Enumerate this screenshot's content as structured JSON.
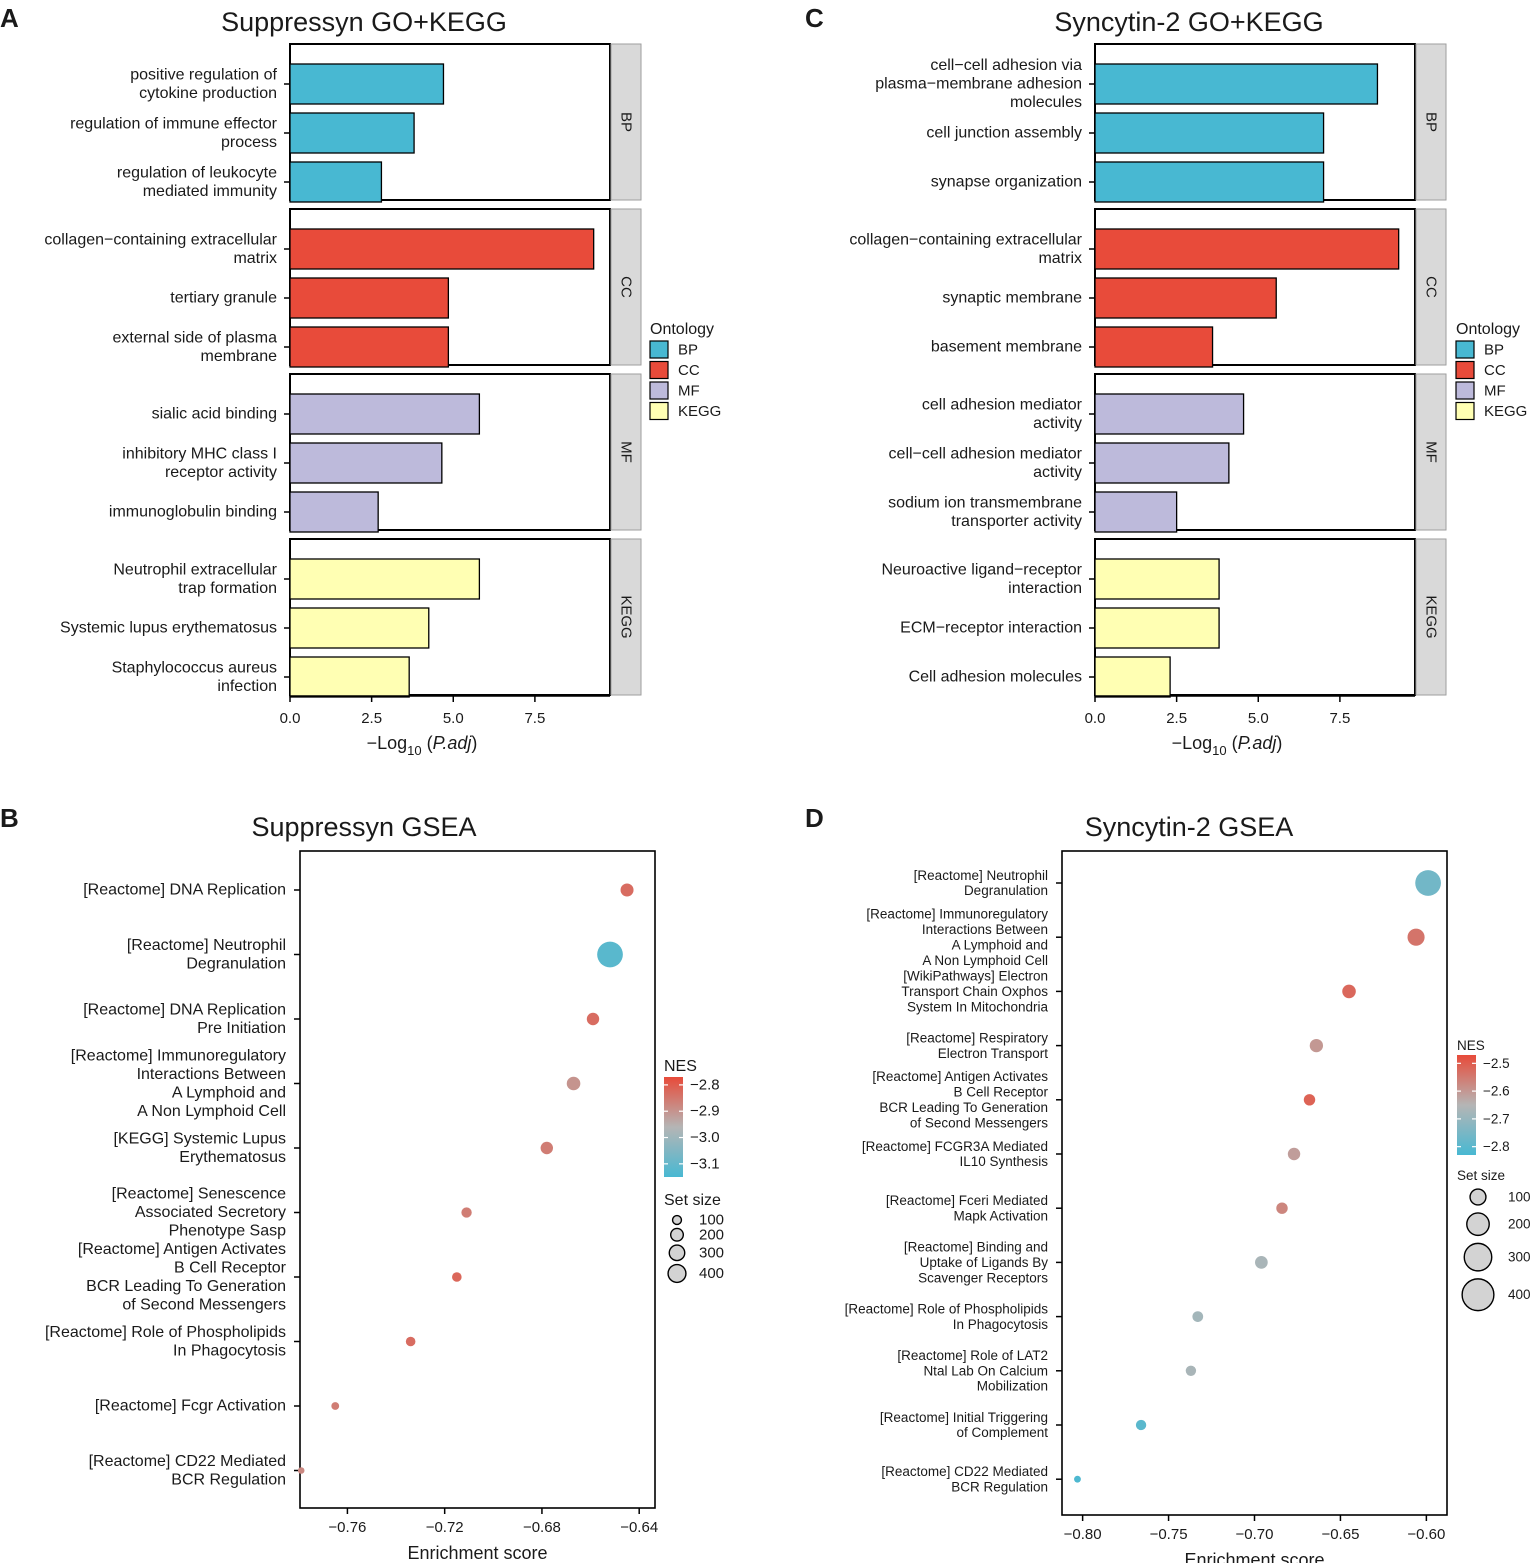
{
  "palette": {
    "BP": "#48b8d2",
    "CC": "#e84b3a",
    "MF": "#bdbadb",
    "KEGG": "#ffffb3",
    "strip": "#d9d9d9",
    "nes_high": "#e84b3a",
    "nes_low": "#48b8d2",
    "nes_mid": "#b5b5b5",
    "size_fill": "#d3d3d3"
  },
  "chart_data": [
    {
      "panel": "A",
      "type": "bar",
      "title": "Suppressyn GO+KEGG",
      "xlabel_main": "−Log",
      "xlabel_sub": "10",
      "xlabel_italic": "P.adj",
      "xlim": [
        0,
        9.8
      ],
      "xticks": [
        "0.0",
        "2.5",
        "5.0",
        "7.5"
      ],
      "legend_title": "Ontology",
      "legend_items": [
        "BP",
        "CC",
        "MF",
        "KEGG"
      ],
      "facets": [
        {
          "name": "BP",
          "terms": [
            {
              "label": [
                "positive regulation of",
                "cytokine production"
              ],
              "value": 4.7
            },
            {
              "label": [
                "regulation of immune effector",
                "process"
              ],
              "value": 3.8
            },
            {
              "label": [
                "regulation of leukocyte",
                "mediated immunity"
              ],
              "value": 2.8
            }
          ]
        },
        {
          "name": "CC",
          "terms": [
            {
              "label": [
                "collagen−containing extracellular",
                "matrix"
              ],
              "value": 9.3
            },
            {
              "label": [
                "tertiary granule"
              ],
              "value": 4.85
            },
            {
              "label": [
                "external side of plasma",
                "membrane"
              ],
              "value": 4.85
            }
          ]
        },
        {
          "name": "MF",
          "terms": [
            {
              "label": [
                "sialic acid binding"
              ],
              "value": 5.8
            },
            {
              "label": [
                "inhibitory MHC class I",
                "receptor activity"
              ],
              "value": 4.65
            },
            {
              "label": [
                "immunoglobulin binding"
              ],
              "value": 2.7
            }
          ]
        },
        {
          "name": "KEGG",
          "terms": [
            {
              "label": [
                "Neutrophil extracellular",
                "trap formation"
              ],
              "value": 5.8
            },
            {
              "label": [
                "Systemic lupus erythematosus"
              ],
              "value": 4.25
            },
            {
              "label": [
                "Staphylococcus aureus",
                "infection"
              ],
              "value": 3.65
            }
          ]
        }
      ]
    },
    {
      "panel": "C",
      "type": "bar",
      "title": "Syncytin-2 GO+KEGG",
      "xlabel_main": "−Log",
      "xlabel_sub": "10",
      "xlabel_italic": "P.adj",
      "xlim": [
        0,
        9.8
      ],
      "xticks": [
        "0.0",
        "2.5",
        "5.0",
        "7.5"
      ],
      "legend_title": "Ontology",
      "legend_items": [
        "BP",
        "CC",
        "MF",
        "KEGG"
      ],
      "facets": [
        {
          "name": "BP",
          "terms": [
            {
              "label": [
                "cell−cell adhesion via",
                "plasma−membrane adhesion",
                "molecules"
              ],
              "value": 8.65
            },
            {
              "label": [
                "cell junction assembly"
              ],
              "value": 7.0
            },
            {
              "label": [
                "synapse organization"
              ],
              "value": 7.0
            }
          ]
        },
        {
          "name": "CC",
          "terms": [
            {
              "label": [
                "collagen−containing extracellular",
                "matrix"
              ],
              "value": 9.3
            },
            {
              "label": [
                "synaptic membrane"
              ],
              "value": 5.55
            },
            {
              "label": [
                "basement membrane"
              ],
              "value": 3.6
            }
          ]
        },
        {
          "name": "MF",
          "terms": [
            {
              "label": [
                "cell adhesion mediator",
                "activity"
              ],
              "value": 4.55
            },
            {
              "label": [
                "cell−cell adhesion mediator",
                "activity"
              ],
              "value": 4.1
            },
            {
              "label": [
                "sodium ion transmembrane",
                "transporter activity"
              ],
              "value": 2.5
            }
          ]
        },
        {
          "name": "KEGG",
          "terms": [
            {
              "label": [
                "Neuroactive ligand−receptor",
                "interaction"
              ],
              "value": 3.8
            },
            {
              "label": [
                "ECM−receptor interaction"
              ],
              "value": 3.8
            },
            {
              "label": [
                "Cell adhesion molecules"
              ],
              "value": 2.3
            }
          ]
        }
      ]
    },
    {
      "panel": "B",
      "type": "scatter",
      "title": "Suppressyn GSEA",
      "xlabel": "Enrichment score",
      "xlim": [
        -0.7795,
        -0.6335
      ],
      "xticks": [
        -0.76,
        -0.72,
        -0.68,
        -0.64
      ],
      "xtick_labels": [
        "−0.76",
        "−0.72",
        "−0.68",
        "−0.64"
      ],
      "nes_legend_title": "NES",
      "nes_range": [
        -3.15,
        -2.77
      ],
      "nes_ticks": [
        "−2.8",
        "−2.9",
        "−3.0",
        "−3.1"
      ],
      "nes_tick_values": [
        -2.8,
        -2.9,
        -3.0,
        -3.1
      ],
      "size_legend_title": "Set size",
      "size_ticks": [
        100,
        200,
        300,
        400
      ],
      "points": [
        {
          "label": [
            "[Reactome] DNA Replication"
          ],
          "es": -0.645,
          "nes": -2.83,
          "size": 110
        },
        {
          "label": [
            "[Reactome] Neutrophil",
            "Degranulation"
          ],
          "es": -0.652,
          "nes": -3.12,
          "size": 430
        },
        {
          "label": [
            "[Reactome] DNA Replication",
            "Pre Initiation"
          ],
          "es": -0.659,
          "nes": -2.83,
          "size": 100
        },
        {
          "label": [
            "[Reactome] Immunoregulatory",
            "Interactions Between",
            "A Lymphoid and",
            "A Non Lymphoid Cell"
          ],
          "es": -0.667,
          "nes": -2.9,
          "size": 120
        },
        {
          "label": [
            "[KEGG] Systemic Lupus",
            "Erythematosus"
          ],
          "es": -0.678,
          "nes": -2.86,
          "size": 100
        },
        {
          "label": [
            "[Reactome] Senescence",
            "Associated Secretory",
            "Phenotype Sasp"
          ],
          "es": -0.711,
          "nes": -2.86,
          "size": 70
        },
        {
          "label": [
            "[Reactome] Antigen Activates",
            "B Cell Receptor",
            "BCR Leading To Generation",
            "of Second Messengers"
          ],
          "es": -0.715,
          "nes": -2.82,
          "size": 60
        },
        {
          "label": [
            "[Reactome] Role of Phospholipids",
            "In Phagocytosis"
          ],
          "es": -0.734,
          "nes": -2.83,
          "size": 60
        },
        {
          "label": [
            "[Reactome] Fcgr Activation"
          ],
          "es": -0.765,
          "nes": -2.86,
          "size": 40
        },
        {
          "label": [
            "[Reactome] CD22 Mediated",
            "BCR Regulation"
          ],
          "es": -0.779,
          "nes": -2.88,
          "size": 28
        }
      ]
    },
    {
      "panel": "D",
      "type": "scatter",
      "title": "Syncytin-2 GSEA",
      "xlabel": "Enrichment score",
      "xlim": [
        -0.812,
        -0.588
      ],
      "xticks": [
        -0.8,
        -0.75,
        -0.7,
        -0.65,
        -0.6
      ],
      "xtick_labels": [
        "−0.80",
        "−0.75",
        "−0.70",
        "−0.65",
        "−0.60"
      ],
      "nes_legend_title": "NES",
      "nes_range": [
        -2.83,
        -2.47
      ],
      "nes_ticks": [
        "−2.5",
        "−2.6",
        "−2.7",
        "−2.8"
      ],
      "nes_tick_values": [
        -2.5,
        -2.6,
        -2.7,
        -2.8
      ],
      "size_legend_title": "Set size",
      "size_ticks": [
        100,
        200,
        300,
        400
      ],
      "points": [
        {
          "label": [
            "[Reactome] Neutrophil",
            "Degranulation"
          ],
          "es": -0.599,
          "nes": -2.76,
          "size": 430
        },
        {
          "label": [
            "[Reactome] Immunoregulatory",
            "Interactions Between",
            "A Lymphoid and",
            "A Non Lymphoid Cell"
          ],
          "es": -0.606,
          "nes": -2.54,
          "size": 190
        },
        {
          "label": [
            "[WikiPathways] Electron",
            "Transport Chain Oxphos",
            "System In Mitochondria"
          ],
          "es": -0.645,
          "nes": -2.52,
          "size": 120
        },
        {
          "label": [
            "[Reactome] Respiratory",
            "Electron Transport"
          ],
          "es": -0.664,
          "nes": -2.6,
          "size": 115
        },
        {
          "label": [
            "[Reactome] Antigen Activates",
            "B Cell Receptor",
            "BCR Leading To Generation",
            "of Second Messengers"
          ],
          "es": -0.668,
          "nes": -2.51,
          "size": 85
        },
        {
          "label": [
            "[Reactome] FCGR3A Mediated",
            "IL10 Synthesis"
          ],
          "es": -0.677,
          "nes": -2.61,
          "size": 100
        },
        {
          "label": [
            "[Reactome] Fceri Mediated",
            "Mapk Activation"
          ],
          "es": -0.684,
          "nes": -2.57,
          "size": 85
        },
        {
          "label": [
            "[Reactome] Binding and",
            "Uptake of Ligands By",
            "Scavenger Receptors"
          ],
          "es": -0.696,
          "nes": -2.67,
          "size": 105
        },
        {
          "label": [
            "[Reactome] Role of Phospholipids",
            "In Phagocytosis"
          ],
          "es": -0.733,
          "nes": -2.68,
          "size": 75
        },
        {
          "label": [
            "[Reactome] Role of LAT2",
            "Ntal Lab On Calcium",
            "Mobilization"
          ],
          "es": -0.737,
          "nes": -2.67,
          "size": 70
        },
        {
          "label": [
            "[Reactome] Initial Triggering",
            "of Complement"
          ],
          "es": -0.766,
          "nes": -2.8,
          "size": 70
        },
        {
          "label": [
            "[Reactome] CD22 Mediated",
            "BCR Regulation"
          ],
          "es": -0.803,
          "nes": -2.82,
          "size": 30
        }
      ]
    }
  ]
}
